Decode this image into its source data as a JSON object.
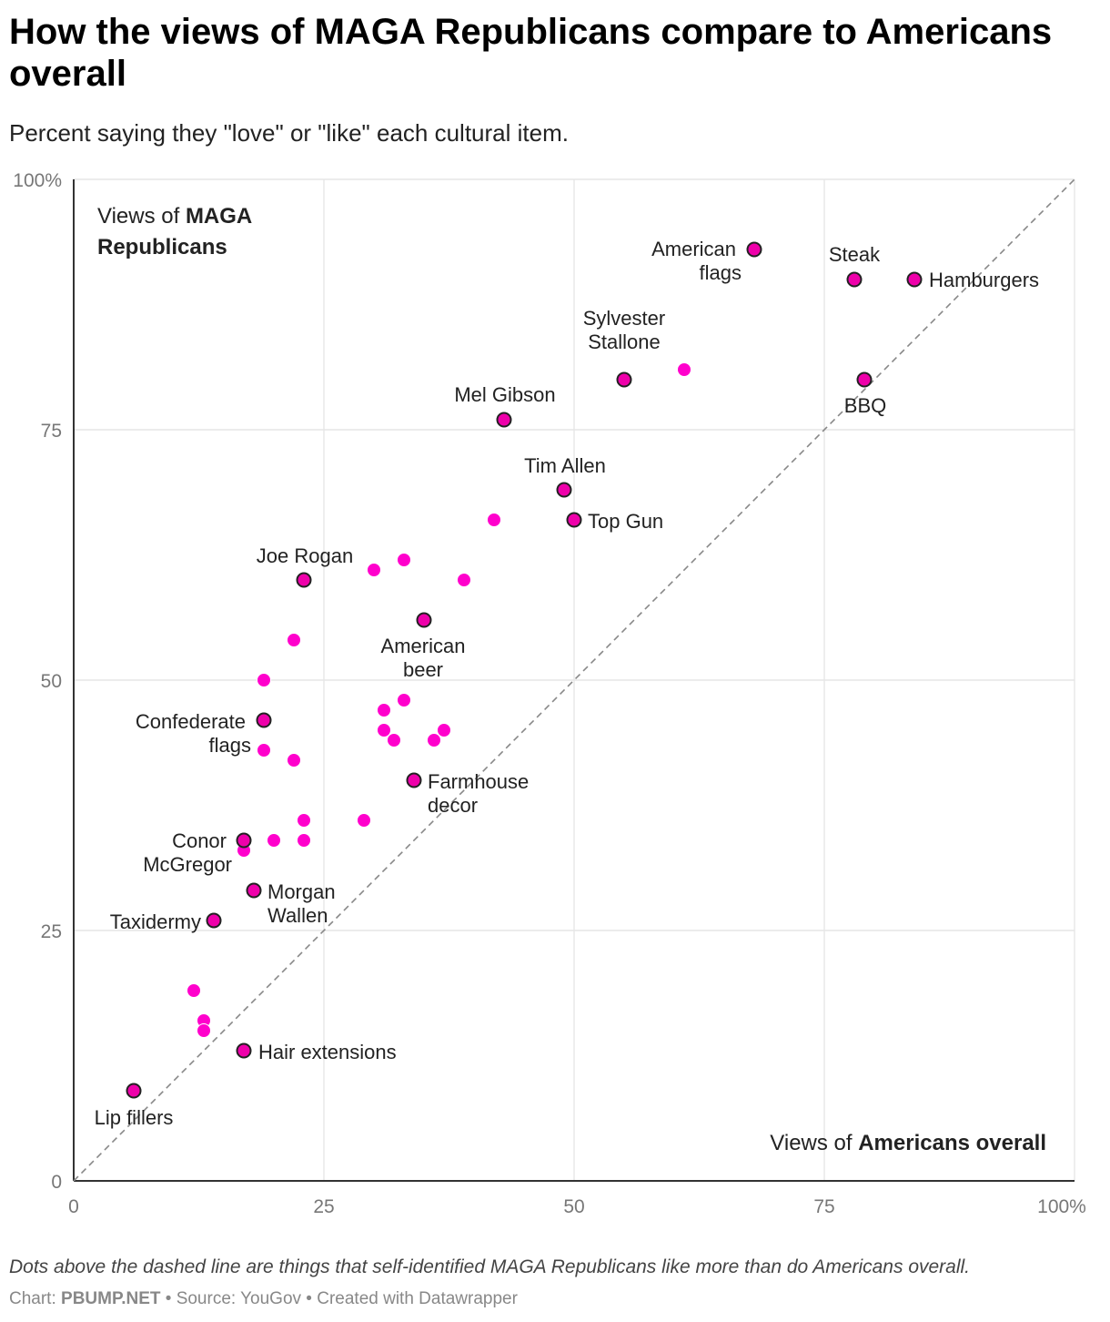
{
  "page": {
    "title": "How the views of MAGA Republicans compare to Americans overall",
    "subtitle": "Percent saying they \"love\" or \"like\" each cultural item.",
    "note": "Dots above the dashed line are things that self-identified MAGA Republicans like more than do Americans overall.",
    "byline": {
      "chart_prefix": "Chart:",
      "chart_source": "PBUMP.NET",
      "source_text": "• Source: YouGov • Created with Datawrapper"
    }
  },
  "colors": {
    "dot": "#ff00cc",
    "dot_highlight": "#ee00aa",
    "outline": "#222222",
    "grid": "#e6e6e6",
    "axis": "#333333",
    "diagonal": "#888888"
  },
  "chart_data": {
    "type": "scatter",
    "xlabel_prefix": "Views of ",
    "xlabel_bold": "Americans overall",
    "ylabel_prefix": "Views of ",
    "ylabel_bold_1": "MAGA",
    "ylabel_bold_2": "Republicans",
    "xlim": [
      0,
      100
    ],
    "ylim": [
      0,
      100
    ],
    "x_ticks": [
      "0",
      "25",
      "50",
      "75",
      "100%"
    ],
    "y_ticks": [
      "0",
      "25",
      "50",
      "75",
      "100%"
    ],
    "grid": true,
    "reference_line": "y = x (dashed)",
    "points": [
      {
        "x": 68,
        "y": 93,
        "label": [
          "American",
          "flags"
        ],
        "highlight": true
      },
      {
        "x": 78,
        "y": 90,
        "label": [
          "Steak"
        ],
        "highlight": true
      },
      {
        "x": 84,
        "y": 90,
        "label": [
          "Hamburgers"
        ],
        "highlight": true
      },
      {
        "x": 55,
        "y": 80,
        "label": [
          "Sylvester",
          "Stallone"
        ],
        "highlight": true
      },
      {
        "x": 61,
        "y": 81,
        "highlight": false
      },
      {
        "x": 79,
        "y": 80,
        "label": [
          "BBQ"
        ],
        "highlight": true
      },
      {
        "x": 43,
        "y": 76,
        "label": [
          "Mel Gibson"
        ],
        "highlight": true
      },
      {
        "x": 49,
        "y": 69,
        "label": [
          "Tim Allen"
        ],
        "highlight": true
      },
      {
        "x": 50,
        "y": 66,
        "label": [
          "Top Gun"
        ],
        "highlight": true
      },
      {
        "x": 42,
        "y": 66,
        "highlight": false
      },
      {
        "x": 23,
        "y": 60,
        "label": [
          "Joe Rogan"
        ],
        "highlight": true
      },
      {
        "x": 30,
        "y": 61,
        "highlight": false
      },
      {
        "x": 33,
        "y": 62,
        "highlight": false
      },
      {
        "x": 39,
        "y": 60,
        "highlight": false
      },
      {
        "x": 35,
        "y": 56,
        "label": [
          "American",
          "beer"
        ],
        "highlight": true
      },
      {
        "x": 22,
        "y": 54,
        "highlight": false
      },
      {
        "x": 19,
        "y": 50,
        "highlight": false
      },
      {
        "x": 19,
        "y": 46,
        "label": [
          "Confederate",
          "flags"
        ],
        "highlight": true
      },
      {
        "x": 19,
        "y": 43,
        "highlight": false
      },
      {
        "x": 22,
        "y": 42,
        "highlight": false
      },
      {
        "x": 31,
        "y": 47,
        "highlight": false
      },
      {
        "x": 33,
        "y": 48,
        "highlight": false
      },
      {
        "x": 31,
        "y": 45,
        "highlight": false
      },
      {
        "x": 32,
        "y": 44,
        "highlight": false
      },
      {
        "x": 36,
        "y": 44,
        "highlight": false
      },
      {
        "x": 37,
        "y": 45,
        "highlight": false
      },
      {
        "x": 34,
        "y": 40,
        "label": [
          "Farmhouse",
          "decor"
        ],
        "highlight": true
      },
      {
        "x": 23,
        "y": 36,
        "highlight": false
      },
      {
        "x": 29,
        "y": 36,
        "highlight": false
      },
      {
        "x": 17,
        "y": 34,
        "label": [
          "Conor",
          "McGregor"
        ],
        "highlight": true
      },
      {
        "x": 17,
        "y": 33,
        "highlight": false
      },
      {
        "x": 20,
        "y": 34,
        "highlight": false
      },
      {
        "x": 23,
        "y": 34,
        "highlight": false
      },
      {
        "x": 18,
        "y": 29,
        "label": [
          "Morgan",
          "Wallen"
        ],
        "highlight": true
      },
      {
        "x": 14,
        "y": 26,
        "label": [
          "Taxidermy"
        ],
        "highlight": true
      },
      {
        "x": 12,
        "y": 19,
        "highlight": false
      },
      {
        "x": 13,
        "y": 16,
        "highlight": false
      },
      {
        "x": 13,
        "y": 15,
        "highlight": false
      },
      {
        "x": 17,
        "y": 13,
        "label": [
          "Hair extensions"
        ],
        "highlight": true
      },
      {
        "x": 6,
        "y": 9,
        "label": [
          "Lip fillers"
        ],
        "highlight": true
      }
    ]
  }
}
